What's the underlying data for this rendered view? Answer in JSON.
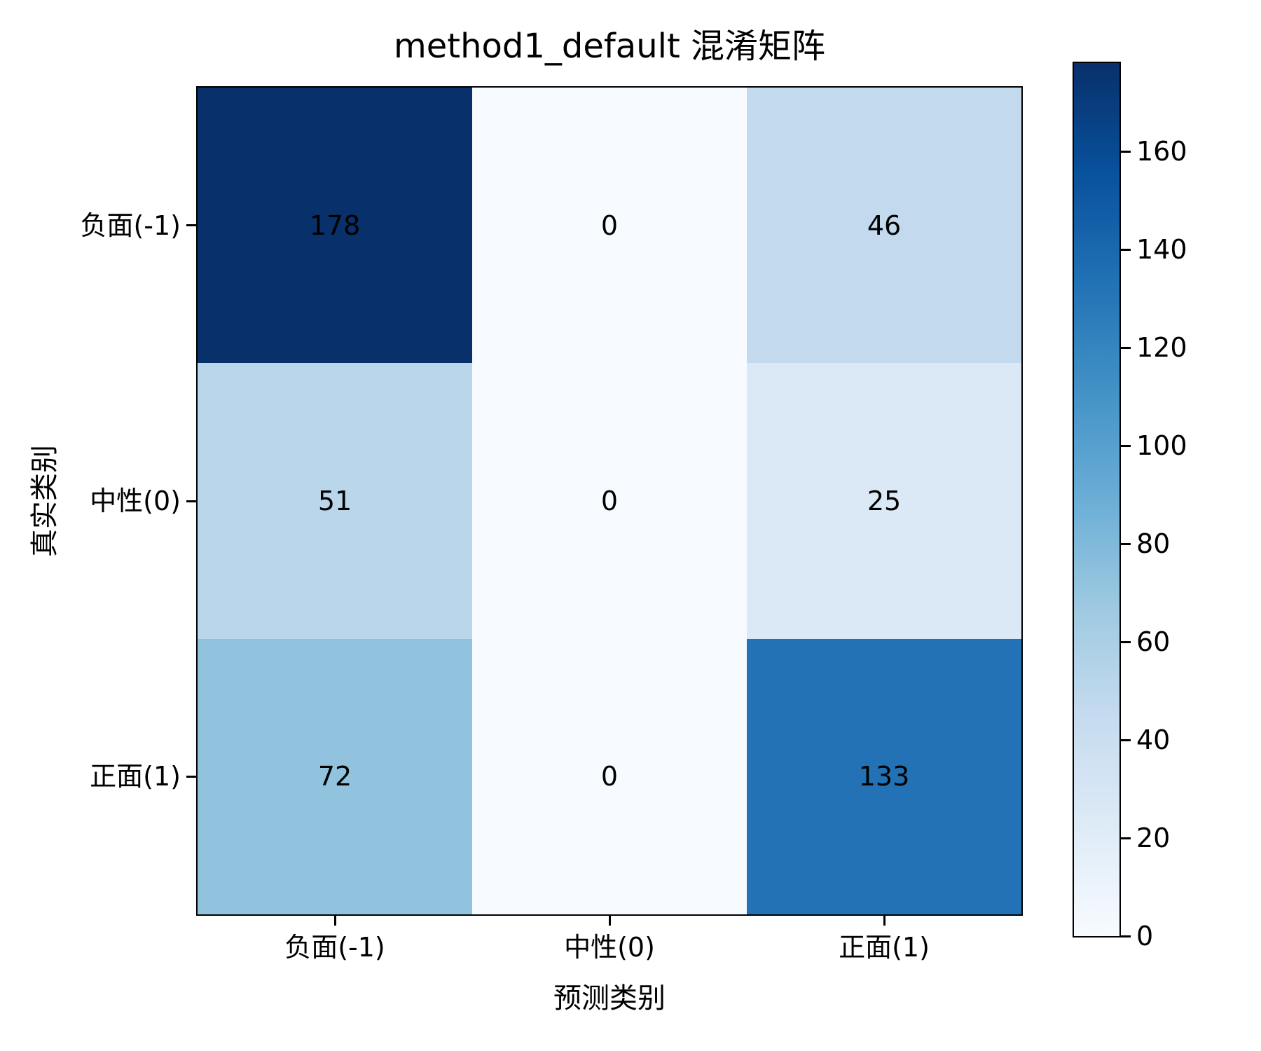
{
  "chart_data": {
    "type": "heatmap",
    "title": "method1_default 混淆矩阵",
    "xlabel": "预测类别",
    "ylabel": "真实类别",
    "x_labels": [
      "负面(-1)",
      "中性(0)",
      "正面(1)"
    ],
    "y_labels": [
      "负面(-1)",
      "中性(0)",
      "正面(1)"
    ],
    "matrix": [
      [
        178,
        0,
        46
      ],
      [
        51,
        0,
        25
      ],
      [
        72,
        0,
        133
      ]
    ],
    "vmin": 0,
    "vmax": 178,
    "colormap": "Blues",
    "legend_position": "right-colorbar",
    "grid": false,
    "colorbar_ticks": [
      0,
      20,
      40,
      60,
      80,
      100,
      120,
      140,
      160
    ],
    "cell_colors": [
      [
        "#08306b",
        "#f7fbff",
        "#c3daee"
      ],
      [
        "#bad6eb",
        "#f7fbff",
        "#dbe9f6"
      ],
      [
        "#92c3de",
        "#f7fbff",
        "#2272b5"
      ]
    ],
    "cell_text_color": "#000000",
    "colormap_stops_low_to_high": [
      "#f7fbff",
      "#deebf7",
      "#c6dbef",
      "#9ecae1",
      "#6baed6",
      "#4292c6",
      "#2171b5",
      "#08519c",
      "#08306b"
    ],
    "axis_color": "#000000"
  }
}
